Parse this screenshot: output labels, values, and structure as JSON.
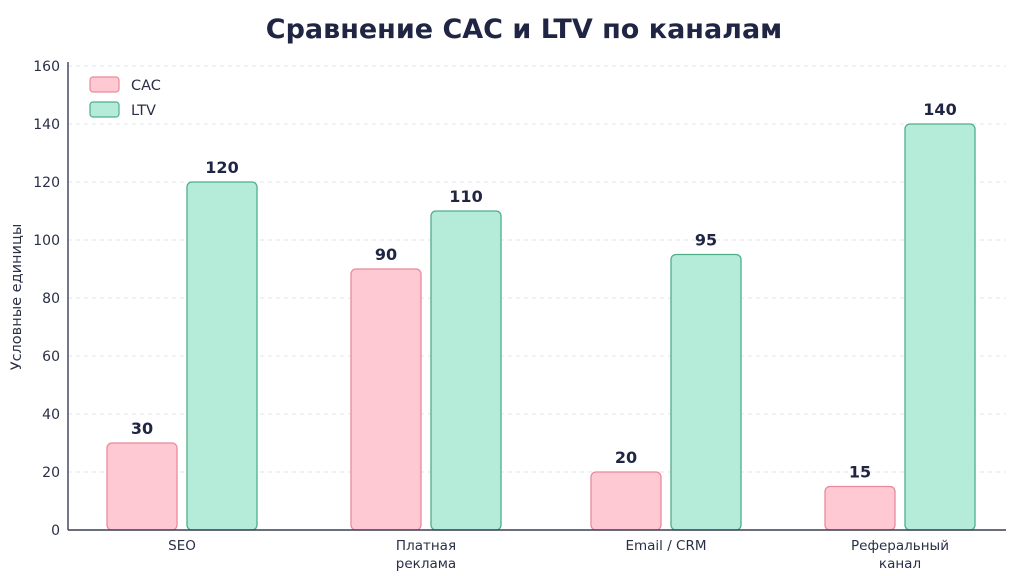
{
  "chart_data": {
    "type": "bar",
    "title": "Сравнение CAC и LTV по каналам",
    "xlabel": "",
    "ylabel": "Условные единицы",
    "categories": [
      [
        "SEO"
      ],
      [
        "Платная",
        "реклама"
      ],
      [
        "Email / CRM"
      ],
      [
        "Реферальный",
        "канал"
      ]
    ],
    "series": [
      {
        "name": "CAC",
        "values": [
          30,
          90,
          20,
          15
        ],
        "color": "#ffc9d3",
        "stroke": "#e88a9b"
      },
      {
        "name": "LTV",
        "values": [
          120,
          110,
          95,
          140
        ],
        "color": "#b5ecd9",
        "stroke": "#4fae88"
      }
    ],
    "ylim": [
      0,
      160
    ],
    "yticks": [
      0,
      20,
      40,
      60,
      80,
      100,
      120,
      140,
      160
    ],
    "grid": true,
    "legend_position": "top-left"
  }
}
